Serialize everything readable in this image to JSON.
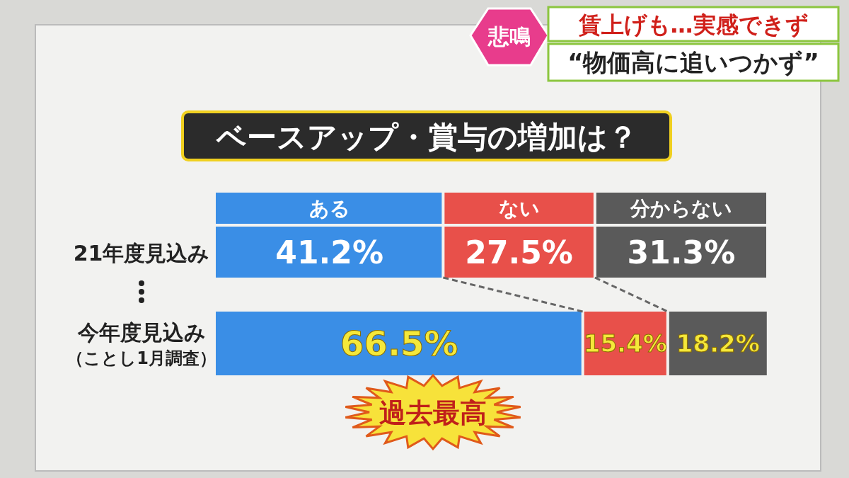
{
  "chart_data": {
    "type": "bar",
    "orientation": "horizontal",
    "stacked": true,
    "title": "ベースアップ・賞与の増加は？",
    "categories": [
      "21年度見込み",
      "今年度見込み（ことし1月調査）"
    ],
    "series": [
      {
        "name": "ある",
        "color": "#3a8ee6",
        "values": [
          41.2,
          66.5
        ],
        "value_labels": [
          "41.2%",
          "66.5%"
        ]
      },
      {
        "name": "ない",
        "color": "#e8504a",
        "values": [
          27.5,
          15.4
        ],
        "value_labels": [
          "27.5%",
          "15.4%"
        ]
      },
      {
        "name": "分からない",
        "color": "#5a5a5a",
        "values": [
          31.3,
          18.2
        ],
        "value_labels": [
          "31.3%",
          "18.2%"
        ]
      }
    ],
    "xlim": [
      0,
      100
    ],
    "tick_labels": "y",
    "legend": "top",
    "annotations": [
      "過去最高",
      "悲鳴",
      "賃上げも…実感できず",
      "“物価高に追いつかず”"
    ]
  }
}
